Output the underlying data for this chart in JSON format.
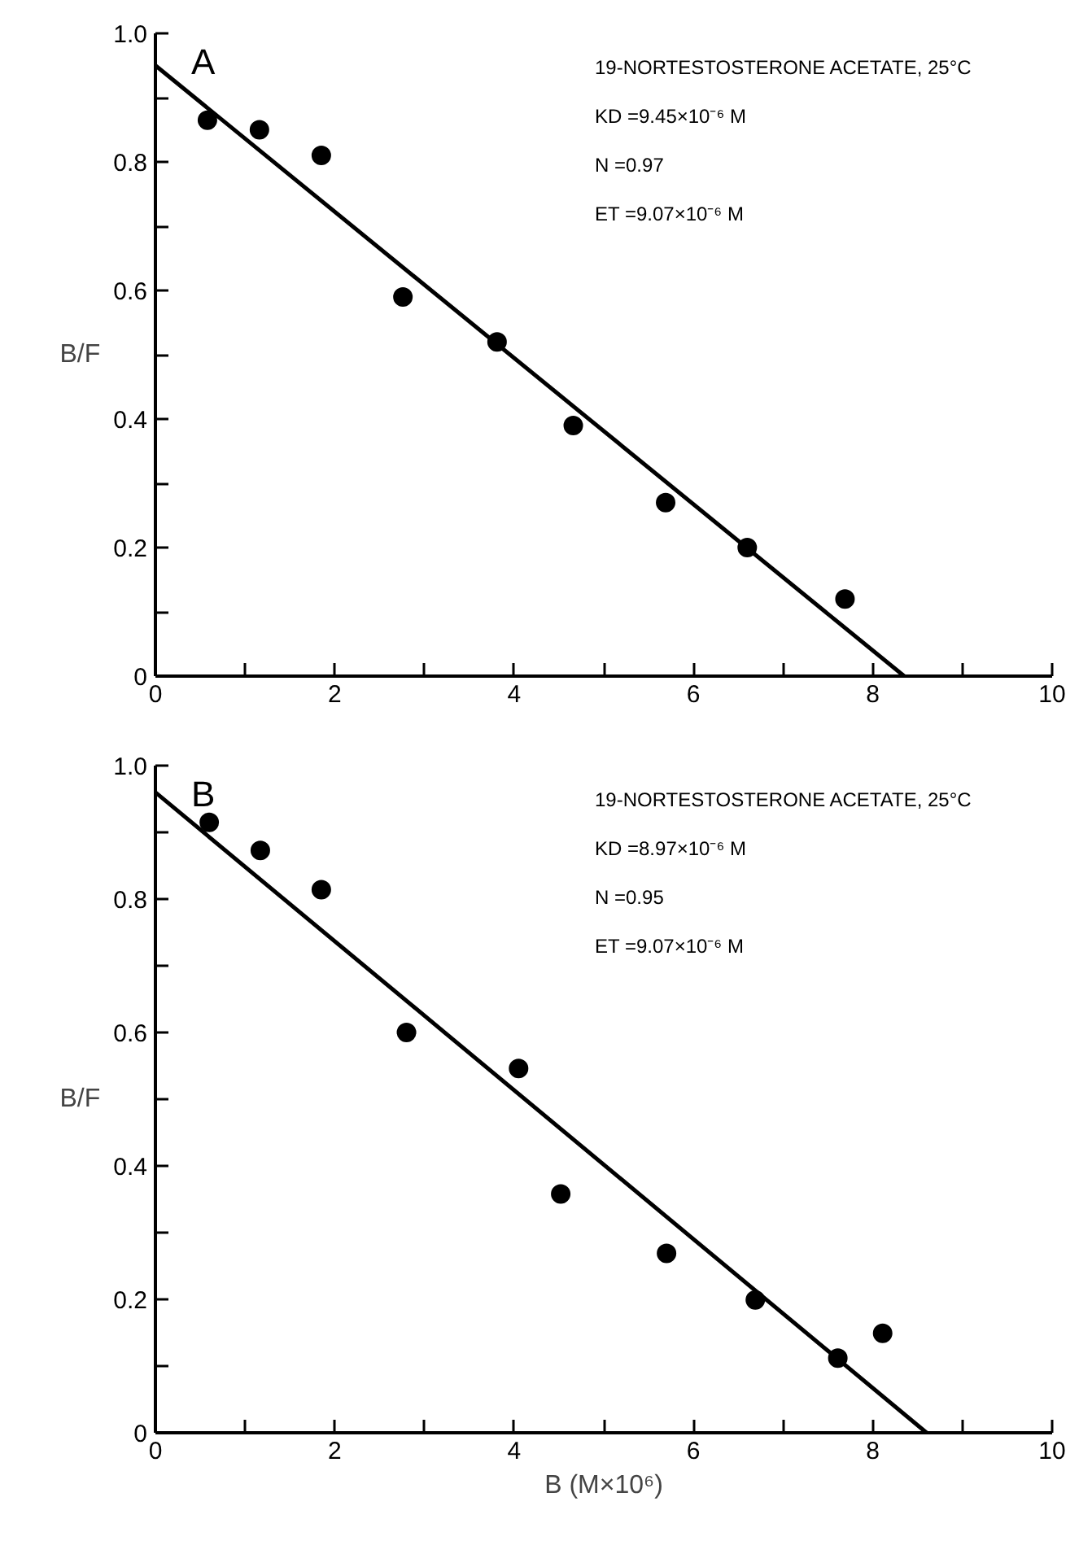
{
  "chart_data": [
    {
      "type": "scatter",
      "title": "A",
      "ylabel": "B/F",
      "xlim": [
        0,
        10
      ],
      "ylim": [
        0,
        1.0
      ],
      "xticks": [
        0,
        {
          "value": 1,
          "label": null
        },
        2,
        {
          "value": 3,
          "label": null
        },
        4,
        {
          "value": 5,
          "label": null
        },
        6,
        {
          "value": 7,
          "label": null
        },
        8,
        {
          "value": 9,
          "label": null
        },
        10
      ],
      "yticks": [
        0,
        {
          "value": 0.1,
          "label": null
        },
        0.2,
        {
          "value": 0.3,
          "label": null
        },
        0.4,
        {
          "value": 0.5,
          "label": null
        },
        0.6,
        {
          "value": 0.7,
          "label": null
        },
        0.8,
        {
          "value": 0.9,
          "label": null
        },
        {
          "value": 1.0,
          "label": "1.0"
        }
      ],
      "annotations": [
        "19-NORTESTOSTERONE ACETATE, 25°C",
        "KD =9.45×10⁻⁶ M",
        "N  =0.97",
        "ET =9.07×10⁻⁶ M"
      ],
      "grid": false,
      "series": [
        {
          "marker": "circle",
          "color": "#000000",
          "x": [
            0.58,
            1.16,
            1.85,
            2.76,
            3.81,
            4.66,
            5.69,
            6.6,
            7.69
          ],
          "values": [
            0.865,
            0.85,
            0.81,
            0.59,
            0.52,
            0.39,
            0.27,
            0.2,
            0.12
          ]
        },
        {
          "type": "line",
          "color": "#000000",
          "x": [
            0,
            8.35
          ],
          "values": [
            0.95,
            0
          ]
        }
      ]
    },
    {
      "type": "scatter",
      "title": "B",
      "xlabel": "B (M×10⁶)",
      "ylabel": "B/F",
      "xlim": [
        0,
        10
      ],
      "ylim": [
        0,
        1.0
      ],
      "xticks": [
        0,
        {
          "value": 1,
          "label": null
        },
        2,
        {
          "value": 3,
          "label": null
        },
        4,
        {
          "value": 5,
          "label": null
        },
        6,
        {
          "value": 7,
          "label": null
        },
        8,
        {
          "value": 9,
          "label": null
        },
        10
      ],
      "yticks": [
        0,
        {
          "value": 0.1,
          "label": null
        },
        0.2,
        {
          "value": 0.3,
          "label": null
        },
        0.4,
        {
          "value": 0.5,
          "label": null
        },
        0.6,
        {
          "value": 0.7,
          "label": null
        },
        0.8,
        {
          "value": 0.9,
          "label": null
        },
        {
          "value": 1.0,
          "label": "1.0"
        }
      ],
      "annotations": [
        "19-NORTESTOSTERONE ACETATE, 25°C",
        "KD =8.97×10⁻⁶ M",
        "N  =0.95",
        "ET =9.07×10⁻⁶ M"
      ],
      "grid": false,
      "series": [
        {
          "marker": "circle",
          "color": "#000000",
          "x": [
            0.6,
            1.17,
            1.85,
            2.8,
            4.05,
            4.52,
            5.7,
            6.69,
            7.61,
            8.11
          ],
          "values": [
            0.915,
            0.873,
            0.814,
            0.6,
            0.546,
            0.358,
            0.269,
            0.199,
            0.112,
            0.149
          ]
        },
        {
          "type": "line",
          "color": "#000000",
          "x": [
            0,
            8.6
          ],
          "values": [
            0.96,
            0
          ]
        }
      ]
    }
  ]
}
